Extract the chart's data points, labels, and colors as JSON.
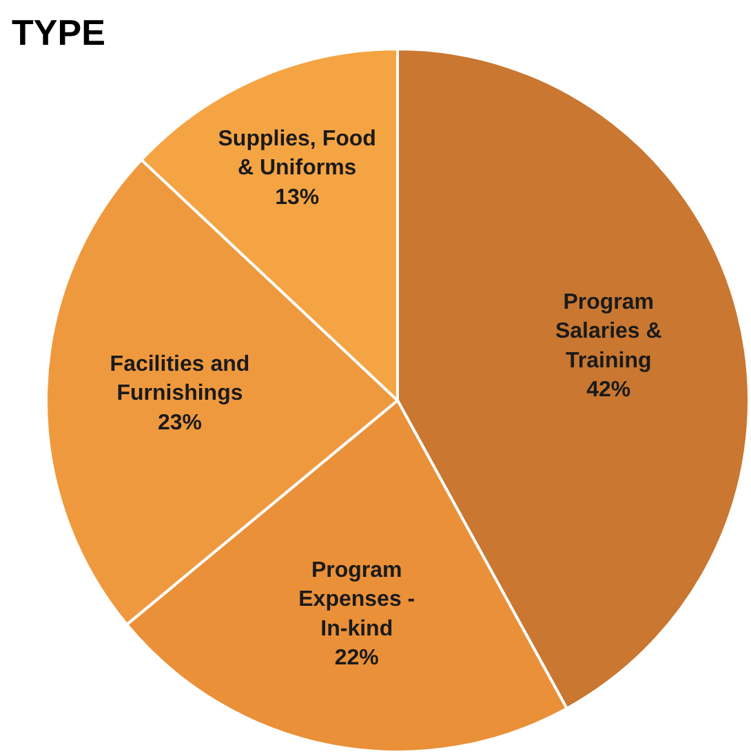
{
  "chart_data": {
    "type": "pie",
    "title": "TYPE",
    "categories": [
      "Program Salaries & Training",
      "Program Expenses - In-kind",
      "Facilities and Furnishings",
      "Supplies, Food & Uniforms"
    ],
    "values": [
      42,
      22,
      23,
      13
    ],
    "colors": [
      "#c97731",
      "#ea9039",
      "#ef993f",
      "#f5a444"
    ],
    "value_labels": [
      "42%",
      "22%",
      "23%",
      "13%"
    ]
  }
}
